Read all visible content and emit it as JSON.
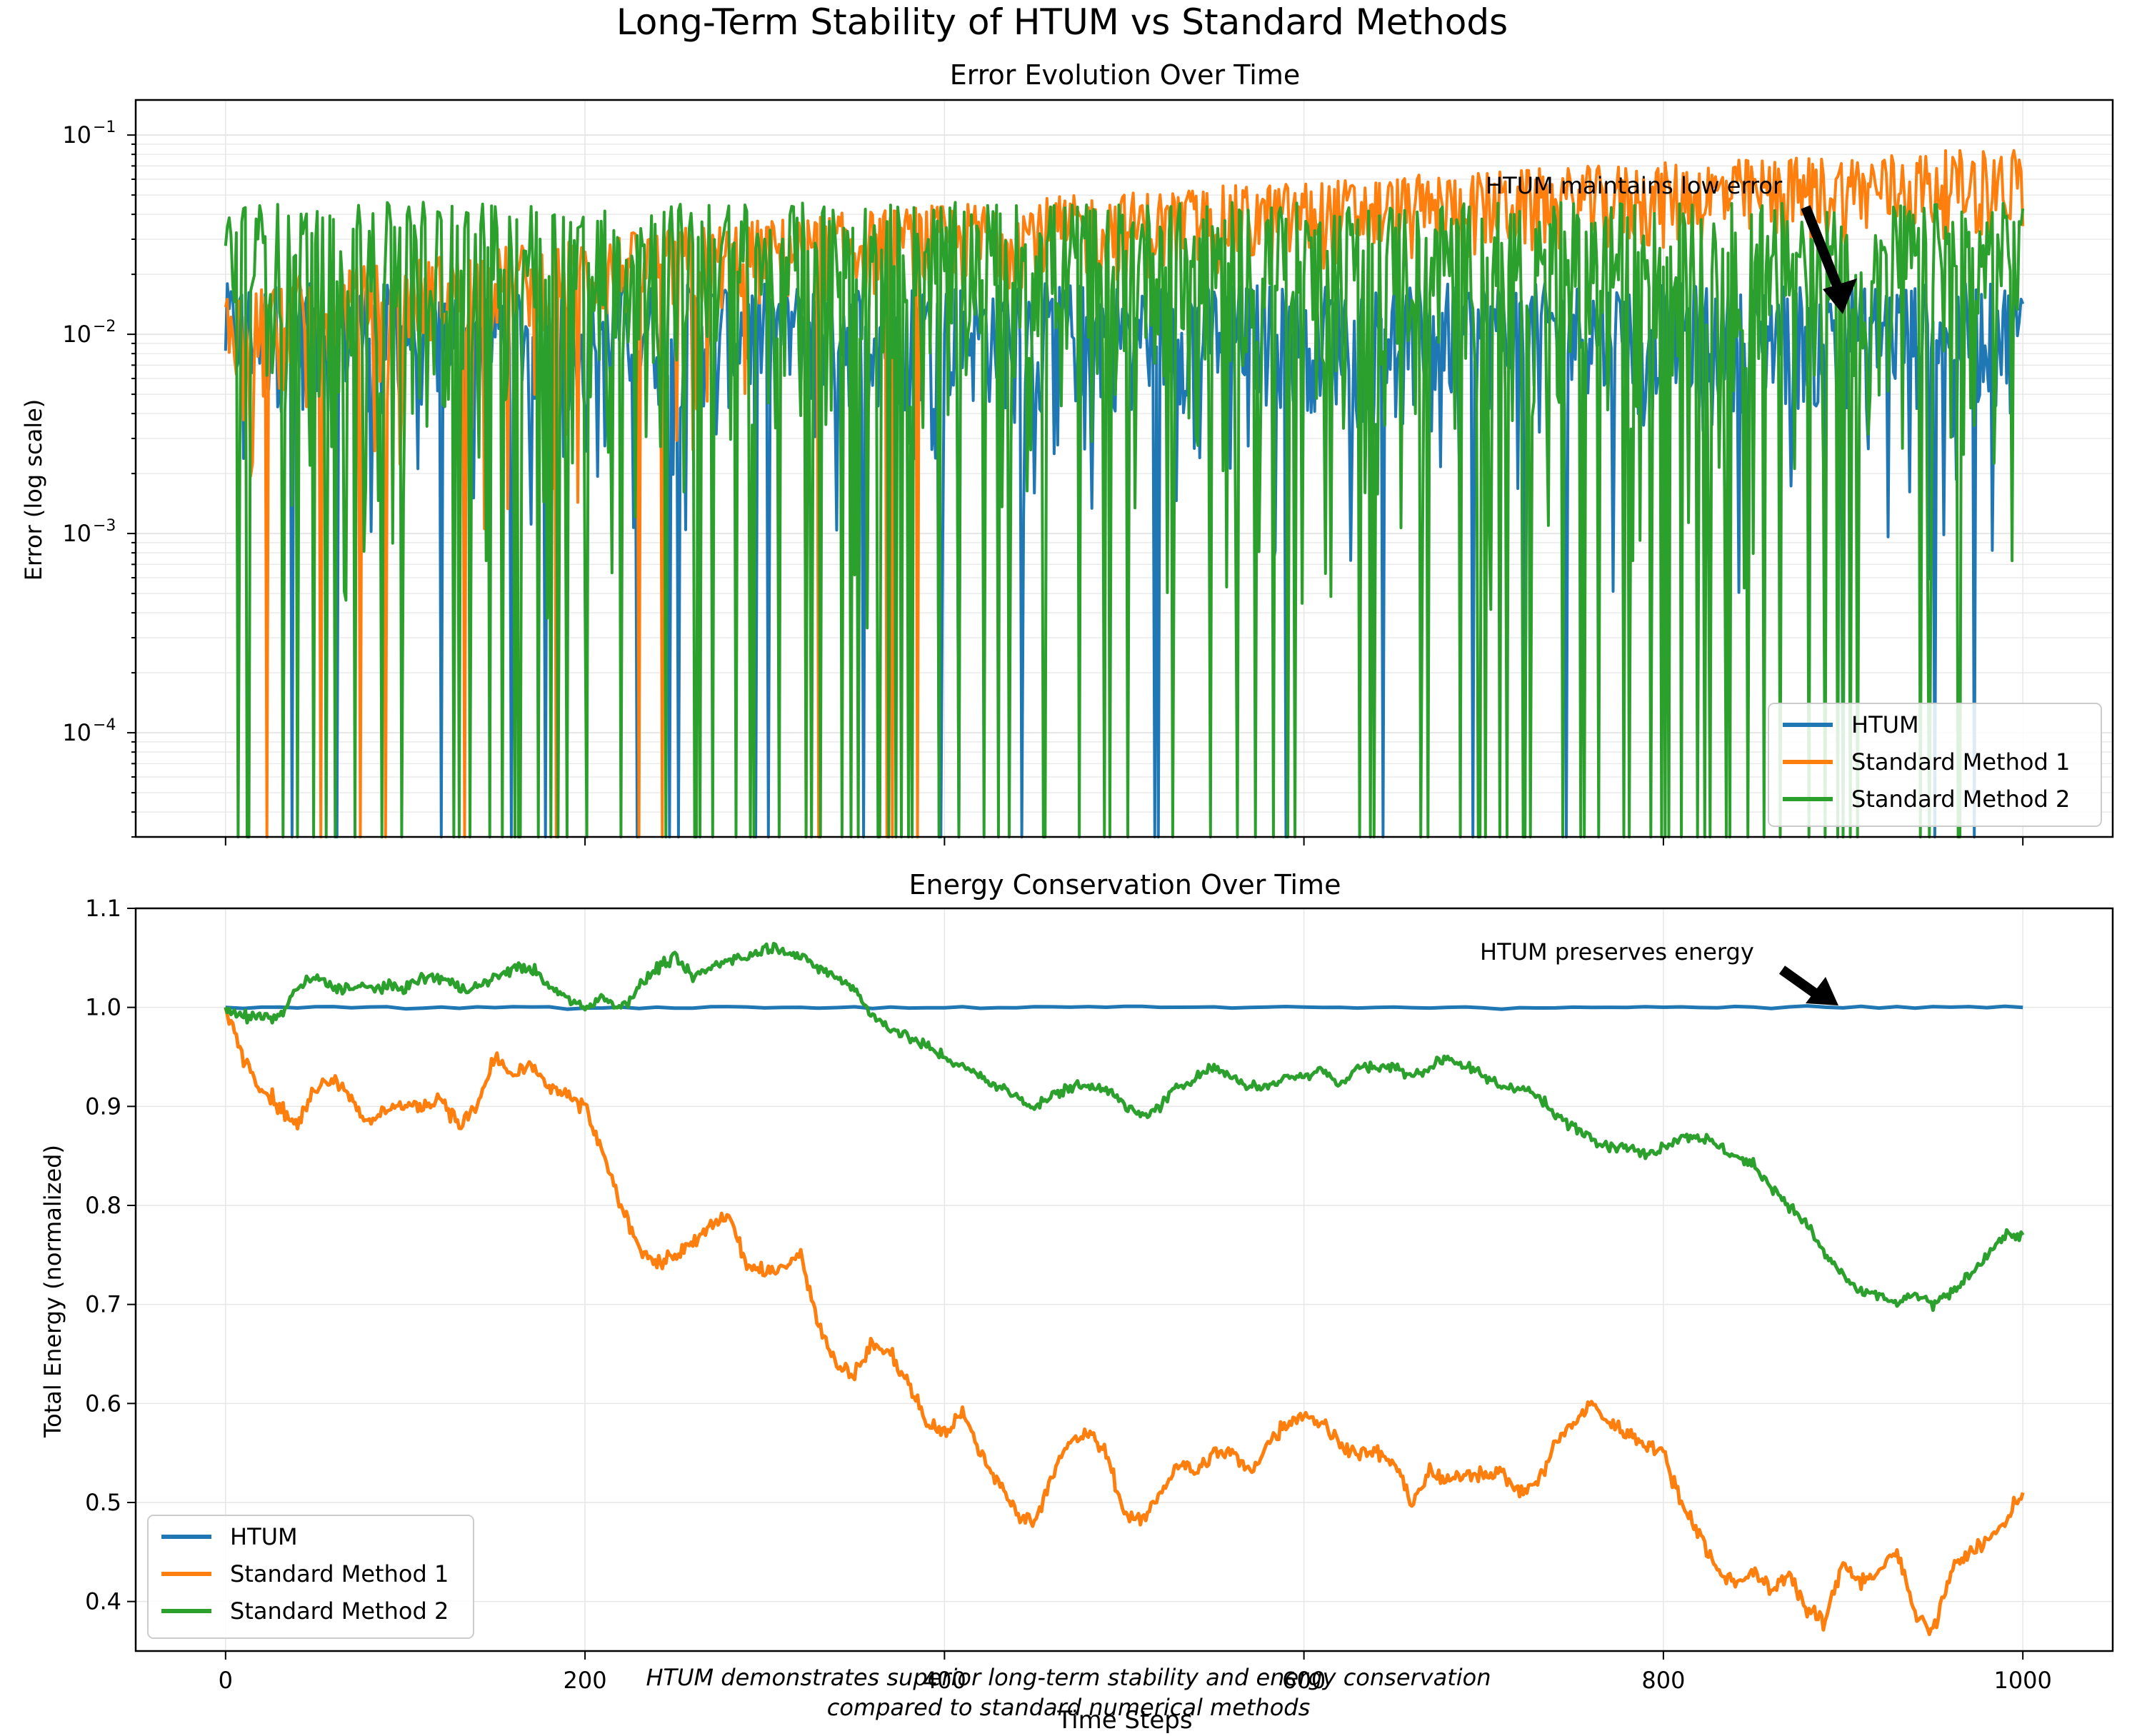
{
  "figure": {
    "suptitle": "Long-Term Stability of HTUM vs Standard Methods",
    "caption_line1": "HTUM demonstrates superior long-term stability and energy conservation",
    "caption_line2": "compared to standard numerical methods"
  },
  "colors": {
    "htum": "#1f77b4",
    "method1": "#ff7f0e",
    "method2": "#2ca02c",
    "grid": "#e6e6e6",
    "annotation": "#000000"
  },
  "chart_data": [
    {
      "type": "line",
      "title": "Error Evolution Over Time",
      "xlabel": "",
      "ylabel": "Error (log scale)",
      "yscale": "log",
      "xlim": [
        -50,
        1050
      ],
      "ylim": [
        3e-05,
        0.15
      ],
      "xticks": [
        0,
        200,
        400,
        600,
        800,
        1000
      ],
      "yticks": [
        0.1,
        0.01,
        0.001,
        0.0001
      ],
      "ytick_labels": [
        {
          "base": "10",
          "exp": "−1"
        },
        {
          "base": "10",
          "exp": "−2"
        },
        {
          "base": "10",
          "exp": "−3"
        },
        {
          "base": "10",
          "exp": "−4"
        }
      ],
      "grid": true,
      "legend": "lower-right",
      "annotation": {
        "text": "HTUM maintains low error",
        "text_x": 700,
        "text_y": 0.055,
        "arrow_to_x": 900,
        "arrow_to_y": 0.012
      },
      "series_summary": [
        {
          "name": "HTUM",
          "typical_value": 0.01,
          "range": [
            3e-05,
            0.02
          ]
        },
        {
          "name": "Standard Method 1",
          "start_value": 0.015,
          "end_value": 0.07
        },
        {
          "name": "Standard Method 2",
          "typical_value": 0.02,
          "range": [
            3e-05,
            0.06
          ]
        }
      ],
      "series": [
        {
          "name": "HTUM",
          "color": "#1f77b4"
        },
        {
          "name": "Standard Method 1",
          "color": "#ff7f0e"
        },
        {
          "name": "Standard Method 2",
          "color": "#2ca02c"
        }
      ]
    },
    {
      "type": "line",
      "title": "Energy Conservation Over Time",
      "xlabel": "Time Steps",
      "ylabel": "Total Energy (normalized)",
      "xlim": [
        -50,
        1050
      ],
      "ylim": [
        0.35,
        1.1
      ],
      "xticks": [
        0,
        200,
        400,
        600,
        800,
        1000
      ],
      "yticks": [
        0.4,
        0.5,
        0.6,
        0.7,
        0.8,
        0.9,
        1.0,
        1.1
      ],
      "grid": true,
      "legend": "lower-left",
      "annotation": {
        "text": "HTUM preserves energy",
        "text_x": 700,
        "text_y": 1.055,
        "arrow_to_x": 900,
        "arrow_to_y": 1.0
      },
      "series": [
        {
          "name": "HTUM",
          "color": "#1f77b4",
          "x": [
            0,
            100,
            200,
            300,
            400,
            500,
            600,
            700,
            800,
            900,
            1000
          ],
          "y": [
            1.0,
            1.0,
            1.0,
            1.0,
            1.0,
            1.0,
            1.0,
            1.0,
            1.0,
            1.0,
            1.0
          ]
        },
        {
          "name": "Standard Method 1",
          "color": "#ff7f0e",
          "x": [
            0,
            10,
            20,
            30,
            40,
            50,
            60,
            70,
            80,
            90,
            100,
            110,
            120,
            130,
            140,
            150,
            160,
            170,
            180,
            190,
            200,
            210,
            220,
            230,
            240,
            250,
            260,
            270,
            280,
            290,
            300,
            310,
            320,
            330,
            340,
            350,
            360,
            370,
            380,
            390,
            400,
            410,
            420,
            430,
            440,
            450,
            460,
            470,
            480,
            490,
            500,
            510,
            520,
            530,
            540,
            550,
            560,
            570,
            580,
            590,
            600,
            610,
            620,
            630,
            640,
            650,
            660,
            670,
            680,
            690,
            700,
            710,
            720,
            730,
            740,
            750,
            760,
            770,
            780,
            790,
            800,
            810,
            820,
            830,
            840,
            850,
            860,
            870,
            880,
            890,
            900,
            910,
            920,
            930,
            940,
            950,
            960,
            970,
            980,
            990,
            1000
          ],
          "y": [
            1.0,
            0.95,
            0.92,
            0.9,
            0.88,
            0.92,
            0.93,
            0.91,
            0.88,
            0.9,
            0.9,
            0.9,
            0.91,
            0.88,
            0.9,
            0.95,
            0.93,
            0.94,
            0.92,
            0.91,
            0.9,
            0.85,
            0.8,
            0.76,
            0.74,
            0.75,
            0.76,
            0.78,
            0.79,
            0.74,
            0.73,
            0.74,
            0.75,
            0.68,
            0.64,
            0.63,
            0.66,
            0.65,
            0.62,
            0.58,
            0.57,
            0.59,
            0.55,
            0.52,
            0.49,
            0.48,
            0.53,
            0.56,
            0.57,
            0.55,
            0.49,
            0.48,
            0.51,
            0.54,
            0.53,
            0.55,
            0.55,
            0.53,
            0.56,
            0.58,
            0.59,
            0.58,
            0.56,
            0.55,
            0.55,
            0.54,
            0.5,
            0.53,
            0.52,
            0.53,
            0.53,
            0.53,
            0.51,
            0.52,
            0.56,
            0.58,
            0.6,
            0.58,
            0.57,
            0.56,
            0.55,
            0.5,
            0.47,
            0.43,
            0.42,
            0.43,
            0.41,
            0.43,
            0.39,
            0.38,
            0.44,
            0.42,
            0.43,
            0.45,
            0.39,
            0.37,
            0.43,
            0.45,
            0.46,
            0.48,
            0.51
          ]
        },
        {
          "name": "Standard Method 2",
          "color": "#2ca02c",
          "x": [
            0,
            10,
            20,
            30,
            40,
            50,
            60,
            70,
            80,
            90,
            100,
            110,
            120,
            130,
            140,
            150,
            160,
            170,
            180,
            190,
            200,
            210,
            220,
            230,
            240,
            250,
            260,
            270,
            280,
            290,
            300,
            310,
            320,
            330,
            340,
            350,
            360,
            370,
            380,
            390,
            400,
            410,
            420,
            430,
            440,
            450,
            460,
            470,
            480,
            490,
            500,
            510,
            520,
            530,
            540,
            550,
            560,
            570,
            580,
            590,
            600,
            610,
            620,
            630,
            640,
            650,
            660,
            670,
            680,
            690,
            700,
            710,
            720,
            730,
            740,
            750,
            760,
            770,
            780,
            790,
            800,
            810,
            820,
            830,
            840,
            850,
            860,
            870,
            880,
            890,
            900,
            910,
            920,
            930,
            940,
            950,
            960,
            970,
            980,
            990,
            1000
          ],
          "y": [
            1.0,
            0.99,
            0.99,
            0.99,
            1.02,
            1.03,
            1.02,
            1.02,
            1.02,
            1.02,
            1.02,
            1.03,
            1.03,
            1.02,
            1.02,
            1.03,
            1.04,
            1.04,
            1.02,
            1.01,
            1.0,
            1.01,
            1.0,
            1.02,
            1.04,
            1.05,
            1.03,
            1.04,
            1.05,
            1.05,
            1.06,
            1.06,
            1.05,
            1.04,
            1.03,
            1.02,
            0.99,
            0.98,
            0.97,
            0.96,
            0.95,
            0.94,
            0.93,
            0.92,
            0.91,
            0.9,
            0.91,
            0.92,
            0.92,
            0.92,
            0.9,
            0.89,
            0.9,
            0.92,
            0.93,
            0.94,
            0.93,
            0.92,
            0.92,
            0.93,
            0.93,
            0.94,
            0.92,
            0.94,
            0.94,
            0.94,
            0.93,
            0.94,
            0.95,
            0.94,
            0.93,
            0.92,
            0.92,
            0.91,
            0.89,
            0.88,
            0.87,
            0.86,
            0.86,
            0.85,
            0.86,
            0.87,
            0.87,
            0.86,
            0.85,
            0.84,
            0.82,
            0.8,
            0.78,
            0.75,
            0.73,
            0.71,
            0.71,
            0.7,
            0.71,
            0.7,
            0.71,
            0.73,
            0.75,
            0.77,
            0.77
          ]
        }
      ]
    }
  ]
}
